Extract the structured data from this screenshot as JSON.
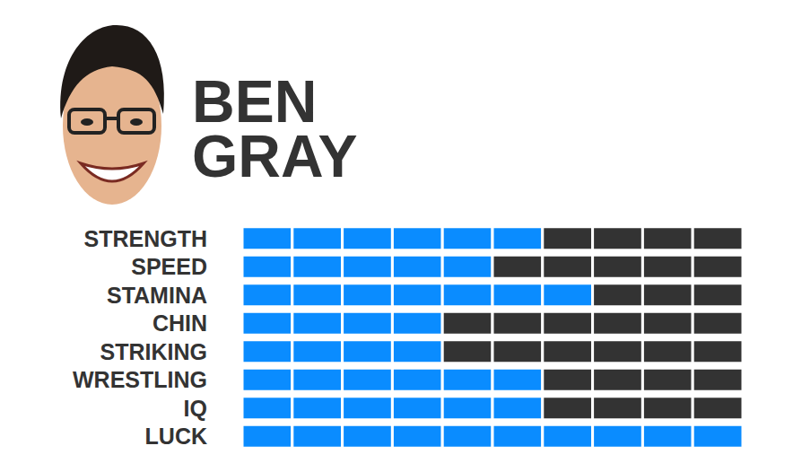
{
  "chart_data": {
    "type": "bar",
    "title": "BEN GRAY",
    "orientation": "horizontal",
    "categories": [
      "STRENGTH",
      "SPEED",
      "STAMINA",
      "CHIN",
      "STRIKING",
      "WRESTLING",
      "IQ",
      "LUCK"
    ],
    "values": [
      6,
      5,
      7,
      4,
      4,
      6,
      6,
      10
    ],
    "color": "#0a8cff",
    "xlim": [
      0,
      10
    ],
    "grid": false,
    "tick_labels": "y"
  }
}
